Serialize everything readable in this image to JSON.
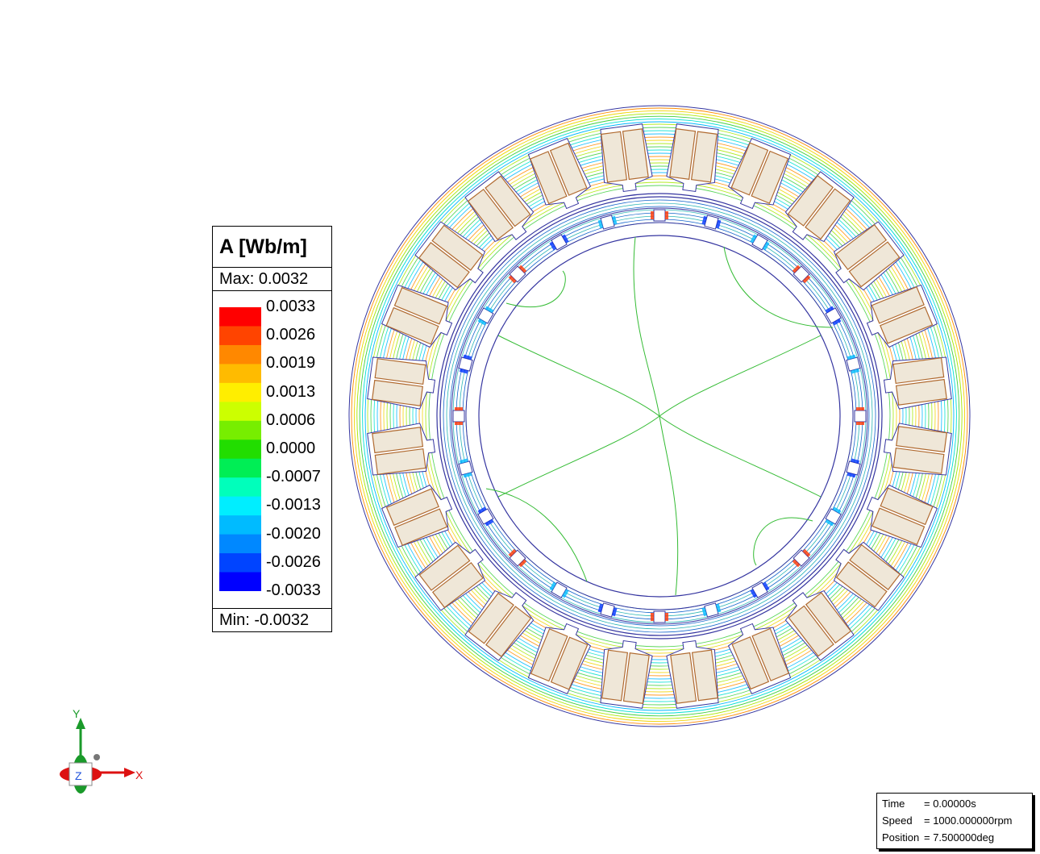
{
  "legend": {
    "title": "A [Wb/m]",
    "max_label": "Max: 0.0032",
    "min_label": "Min: -0.0032",
    "ticks": [
      "0.0033",
      "0.0026",
      "0.0019",
      "0.0013",
      "0.0006",
      "0.0000",
      "-0.0007",
      "-0.0013",
      "-0.0020",
      "-0.0026",
      "-0.0033"
    ],
    "colors": [
      "#ff0000",
      "#ff4400",
      "#ff8800",
      "#ffbb00",
      "#ffee00",
      "#ccff00",
      "#77ee00",
      "#22dd00",
      "#00ee55",
      "#00ffbb",
      "#00eeff",
      "#00bbff",
      "#0088ff",
      "#0044ff",
      "#0000ff"
    ]
  },
  "axis": {
    "y_label": "Y",
    "x_label": "X",
    "z_label": "Z"
  },
  "info": {
    "time_label": "Time",
    "time_value": "= 0.00000s",
    "speed_label": "Speed",
    "speed_value": "= 1000.000000rpm",
    "position_label": "Position",
    "position_value": "= 7.500000deg"
  },
  "machine": {
    "stator_slots": 24,
    "rotor_magnets": 24,
    "core_color": "#3535a0",
    "coil_fill": "#efe7d8",
    "coil_outline": "#b06a30",
    "flux_line_colors": [
      "#00b7ff",
      "#00e0d0",
      "#3fcf3f",
      "#a6e800",
      "#f0d400",
      "#ff8a00"
    ]
  }
}
